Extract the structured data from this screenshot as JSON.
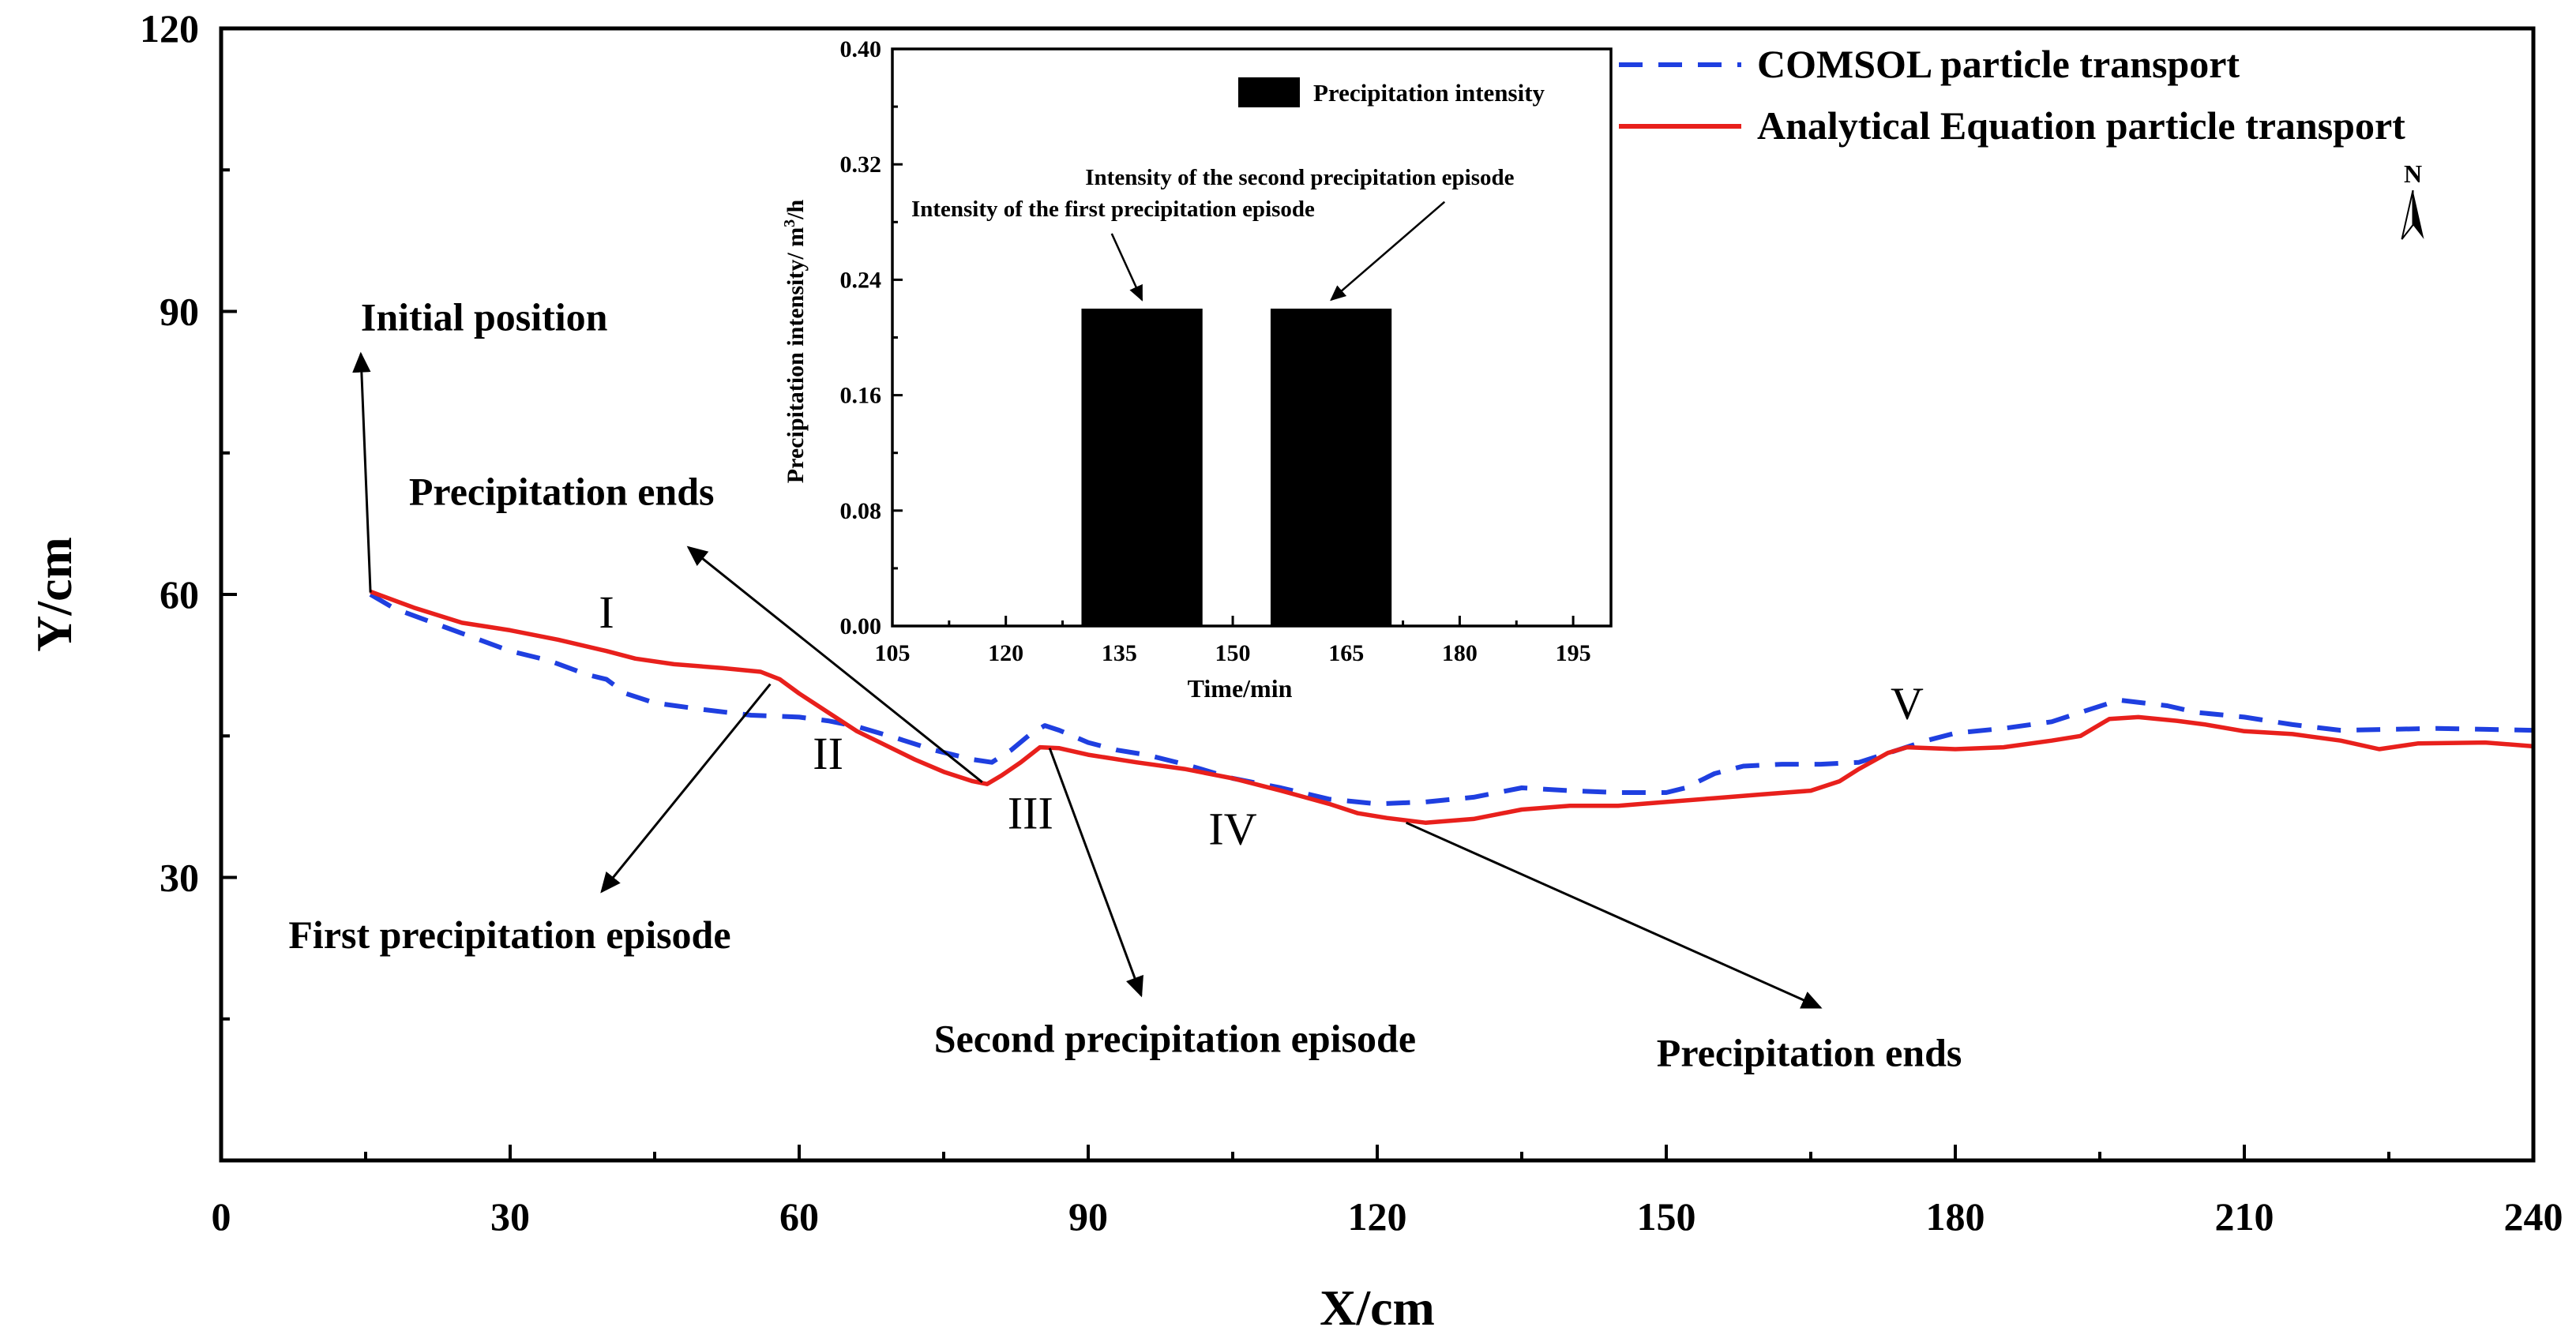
{
  "chart_data": [
    {
      "type": "line",
      "xlabel": "X/cm",
      "ylabel": "Y/cm",
      "xlim": [
        0,
        240
      ],
      "ylim": [
        0,
        120
      ],
      "xticks": [
        0,
        30,
        60,
        90,
        120,
        150,
        180,
        210,
        240
      ],
      "yticks": [
        30,
        60,
        90,
        120
      ],
      "grid": false,
      "legend_position": "top-right",
      "series": [
        {
          "name": "COMSOL particle transport",
          "color": "#1f3fe0",
          "style": "dashed",
          "points": [
            [
              15.5,
              60
            ],
            [
              18,
              58.5
            ],
            [
              22,
              57
            ],
            [
              26,
              55.5
            ],
            [
              30,
              54
            ],
            [
              34,
              53
            ],
            [
              38,
              51.5
            ],
            [
              40,
              51
            ],
            [
              42,
              49.5
            ],
            [
              45,
              48.5
            ],
            [
              50,
              47.8
            ],
            [
              55,
              47.2
            ],
            [
              60,
              47
            ],
            [
              63,
              46.6
            ],
            [
              66,
              46
            ],
            [
              70,
              44.8
            ],
            [
              74,
              43.5
            ],
            [
              78,
              42.5
            ],
            [
              80,
              42.2
            ],
            [
              82,
              43.5
            ],
            [
              84,
              45.2
            ],
            [
              85.5,
              46.1
            ],
            [
              87,
              45.6
            ],
            [
              90,
              44.3
            ],
            [
              93,
              43.5
            ],
            [
              96,
              43
            ],
            [
              100,
              42
            ],
            [
              105,
              40.5
            ],
            [
              110,
              39.5
            ],
            [
              115,
              38.3
            ],
            [
              120,
              37.8
            ],
            [
              125,
              38
            ],
            [
              130,
              38.5
            ],
            [
              135,
              39.5
            ],
            [
              140,
              39.2
            ],
            [
              145,
              39
            ],
            [
              150,
              39
            ],
            [
              152,
              39.5
            ],
            [
              155,
              41
            ],
            [
              158,
              41.8
            ],
            [
              162,
              42
            ],
            [
              166,
              42
            ],
            [
              170,
              42.2
            ],
            [
              174,
              43.5
            ],
            [
              177,
              44.5
            ],
            [
              180,
              45.3
            ],
            [
              185,
              45.8
            ],
            [
              190,
              46.5
            ],
            [
              193,
              47.5
            ],
            [
              197,
              48.8
            ],
            [
              202,
              48.2
            ],
            [
              205,
              47.5
            ],
            [
              210,
              47
            ],
            [
              215,
              46.2
            ],
            [
              220,
              45.6
            ],
            [
              225,
              45.7
            ],
            [
              230,
              45.8
            ],
            [
              235,
              45.7
            ],
            [
              240,
              45.6
            ]
          ]
        },
        {
          "name": "Analytical Equation particle transport",
          "color": "#e8201c",
          "style": "solid",
          "points": [
            [
              15.5,
              60.3
            ],
            [
              20,
              58.6
            ],
            [
              25,
              57
            ],
            [
              30,
              56.2
            ],
            [
              35,
              55.2
            ],
            [
              40,
              54
            ],
            [
              43,
              53.2
            ],
            [
              47,
              52.6
            ],
            [
              52,
              52.2
            ],
            [
              56,
              51.8
            ],
            [
              58,
              51
            ],
            [
              60,
              49.5
            ],
            [
              63,
              47.5
            ],
            [
              66,
              45.5
            ],
            [
              69,
              44
            ],
            [
              72,
              42.5
            ],
            [
              75,
              41.2
            ],
            [
              78,
              40.2
            ],
            [
              79.5,
              39.9
            ],
            [
              81,
              40.8
            ],
            [
              83,
              42.2
            ],
            [
              85,
              43.8
            ],
            [
              87,
              43.7
            ],
            [
              90,
              43
            ],
            [
              95,
              42.2
            ],
            [
              100,
              41.5
            ],
            [
              105,
              40.5
            ],
            [
              110,
              39.2
            ],
            [
              115,
              37.8
            ],
            [
              118,
              36.8
            ],
            [
              121,
              36.3
            ],
            [
              125,
              35.8
            ],
            [
              130,
              36.2
            ],
            [
              135,
              37.2
            ],
            [
              140,
              37.6
            ],
            [
              145,
              37.6
            ],
            [
              150,
              38
            ],
            [
              155,
              38.4
            ],
            [
              160,
              38.8
            ],
            [
              165,
              39.2
            ],
            [
              168,
              40.2
            ],
            [
              170,
              41.5
            ],
            [
              173,
              43.2
            ],
            [
              175,
              43.8
            ],
            [
              180,
              43.6
            ],
            [
              185,
              43.8
            ],
            [
              190,
              44.5
            ],
            [
              193,
              45
            ],
            [
              196,
              46.8
            ],
            [
              199,
              47
            ],
            [
              203,
              46.6
            ],
            [
              206,
              46.2
            ],
            [
              210,
              45.5
            ],
            [
              215,
              45.2
            ],
            [
              220,
              44.5
            ],
            [
              224,
              43.6
            ],
            [
              228,
              44.2
            ],
            [
              235,
              44.3
            ],
            [
              240,
              43.9
            ]
          ]
        }
      ],
      "segment_labels": [
        {
          "text": "I",
          "x": 40,
          "y": 56.5
        },
        {
          "text": "II",
          "x": 63,
          "y": 41.5
        },
        {
          "text": "III",
          "x": 84,
          "y": 35.2
        },
        {
          "text": "IV",
          "x": 105,
          "y": 33.5
        },
        {
          "text": "V",
          "x": 175,
          "y": 46.8
        }
      ],
      "annotations": [
        {
          "text": "Initial position",
          "x": 14.5,
          "y": 88,
          "arrow_from": [
            15.5,
            60.2
          ],
          "arrow_to": [
            14.5,
            85.5
          ]
        },
        {
          "text": "Precipitation ends",
          "x": 19.5,
          "y": 69.5,
          "arrow_from": [
            79,
            40.1
          ],
          "arrow_to": [
            48.5,
            65
          ]
        },
        {
          "text": "First precipitation episode",
          "x": 7,
          "y": 22.5,
          "arrow_from": [
            57,
            50.5
          ],
          "arrow_to": [
            39.5,
            28.5
          ]
        },
        {
          "text": "Second precipitation episode",
          "x": 74,
          "y": 11.5,
          "arrow_from": [
            86,
            43.7
          ],
          "arrow_to": [
            95.5,
            17.5
          ]
        },
        {
          "text": "Precipitation ends",
          "x": 149,
          "y": 10,
          "arrow_from": [
            123,
            35.8
          ],
          "arrow_to": [
            166,
            16.2
          ]
        }
      ],
      "compass": {
        "label": "N",
        "x": 227.5,
        "y": 101
      }
    },
    {
      "type": "bar",
      "inset": true,
      "xlabel": "Time/min",
      "ylabel": "Precipitation intensity/ m³/h",
      "xlim": [
        105,
        200
      ],
      "ylim": [
        0,
        0.4
      ],
      "xticks": [
        105,
        120,
        135,
        150,
        165,
        180,
        195
      ],
      "yticks": [
        "0.00",
        "0.08",
        "0.16",
        "0.24",
        "0.32",
        "0.40"
      ],
      "legend_position": "top-right",
      "series": [
        {
          "name": "Precipitation intensity",
          "color": "#000000",
          "bars": [
            {
              "start": 130,
              "end": 146,
              "value": 0.22
            },
            {
              "start": 155,
              "end": 171,
              "value": 0.22
            }
          ]
        }
      ],
      "annotations": [
        {
          "text": "Intensity of the first precipitation episode",
          "x": 107.5,
          "y": 0.284,
          "arrow_from": [
            134,
            0.272
          ],
          "arrow_to": [
            138,
            0.226
          ]
        },
        {
          "text": "Intensity of the second precipitation episode",
          "x": 130.5,
          "y": 0.306,
          "arrow_from": [
            178,
            0.294
          ],
          "arrow_to": [
            163,
            0.226
          ]
        }
      ]
    }
  ]
}
